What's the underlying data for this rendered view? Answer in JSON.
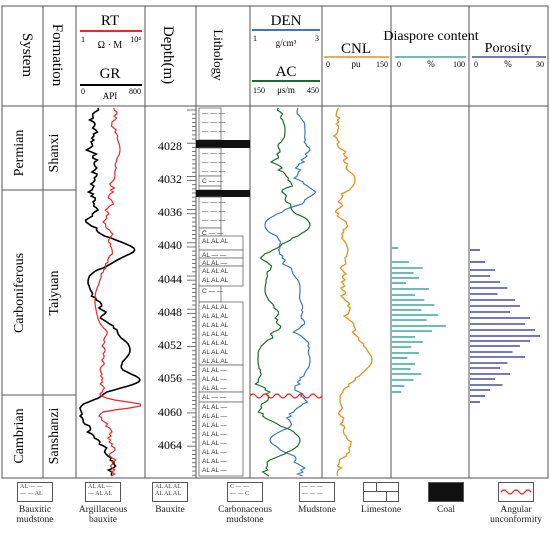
{
  "headers": {
    "system": "System",
    "formation": "Formation",
    "rt": {
      "name": "RT",
      "unit": "Ω · M",
      "min": "1",
      "max": "10⁴"
    },
    "gr": {
      "name": "GR",
      "unit": "API",
      "min": "0",
      "max": "800"
    },
    "depth": "Depth(m)",
    "lithology": "Lithology",
    "den": {
      "name": "DEN",
      "unit": "g/cm³",
      "min": "1",
      "max": "3"
    },
    "ac": {
      "name": "AC",
      "unit": "μs/m",
      "min": "150",
      "max": "450"
    },
    "cnl": {
      "name": "CNL",
      "unit": "pu",
      "min": "0",
      "max": "150"
    },
    "diaspore": {
      "name": "Diaspore content",
      "unit": "%",
      "min": "0",
      "max": "100"
    },
    "porosity": {
      "name": "Porosity",
      "unit": "%",
      "min": "0",
      "max": "30"
    }
  },
  "systems": [
    "Permian",
    "Carboniferous",
    "Cambrian"
  ],
  "formations": [
    "Shanxi",
    "Taiyuan",
    "Sanshanzi"
  ],
  "depth_ticks": [
    "4028",
    "4032",
    "4036",
    "4040",
    "4044",
    "4048",
    "4052",
    "4056",
    "4060",
    "4064"
  ],
  "colors": {
    "rt": "#e8282b",
    "gr": "#000000",
    "den": "#3a78c2",
    "ac": "#1e6b2e",
    "cnl": "#e8901c",
    "diaspore": "#3aa8a0",
    "porosity": "#4a4fa0",
    "unconformity": "#e8282b"
  },
  "legend": [
    {
      "name": "Bauxitic mudstone"
    },
    {
      "name": "Argillaceous bauxite"
    },
    {
      "name": "Bauxite"
    },
    {
      "name": "Carbonaceous mudstone"
    },
    {
      "name": "Mudstone"
    },
    {
      "name": "Limestone"
    },
    {
      "name": "Coal"
    },
    {
      "name": "Angular unconformity"
    }
  ]
}
